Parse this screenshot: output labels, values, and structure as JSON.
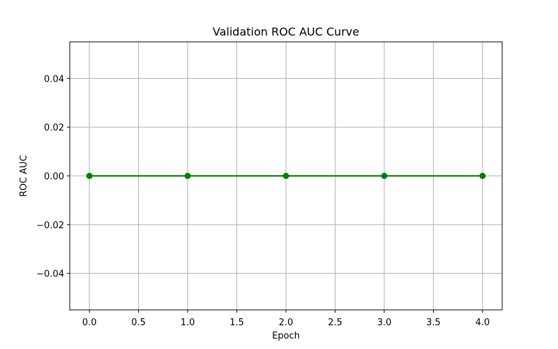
{
  "chart_data": {
    "type": "line",
    "title": "Validation ROC AUC Curve",
    "xlabel": "Epoch",
    "ylabel": "ROC AUC",
    "x": [
      0,
      1,
      2,
      3,
      4
    ],
    "series": [
      {
        "values": [
          0.0,
          0.0,
          0.0,
          0.0,
          0.0
        ],
        "color": "#008000",
        "marker": "circle"
      }
    ],
    "xlim": [
      -0.2,
      4.2
    ],
    "ylim": [
      -0.055,
      0.055
    ],
    "xticks": [
      0.0,
      0.5,
      1.0,
      1.5,
      2.0,
      2.5,
      3.0,
      3.5,
      4.0
    ],
    "xtick_labels": [
      "0.0",
      "0.5",
      "1.0",
      "1.5",
      "2.0",
      "2.5",
      "3.0",
      "3.5",
      "4.0"
    ],
    "yticks": [
      -0.04,
      -0.02,
      0.0,
      0.02,
      0.04
    ],
    "ytick_labels": [
      "−0.04",
      "−0.02",
      "0.00",
      "0.02",
      "0.04"
    ],
    "grid": true,
    "grid_color": "#b0b0b0"
  }
}
